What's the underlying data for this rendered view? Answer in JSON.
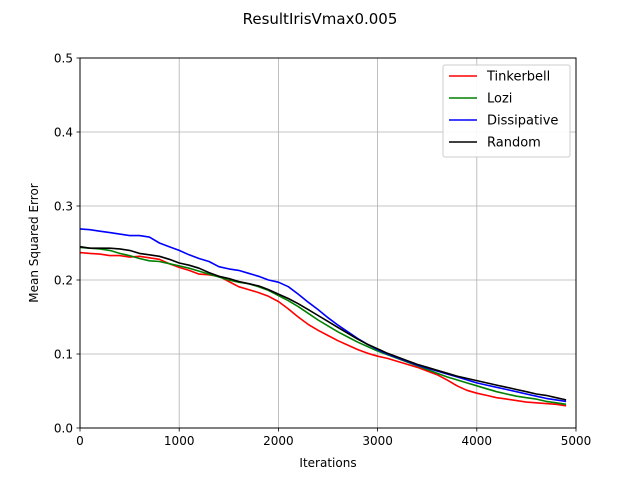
{
  "chart_data": {
    "type": "line",
    "title": "ResultIrisVmax0.005",
    "xlabel": "Iterations",
    "ylabel": "Mean Squared Error",
    "xlim": [
      0,
      5000
    ],
    "ylim": [
      0,
      0.5
    ],
    "xticks": [
      0,
      1000,
      2000,
      3000,
      4000,
      5000
    ],
    "xtick_labels": [
      "0",
      "1000",
      "2000",
      "3000",
      "4000",
      "5000"
    ],
    "yticks": [
      0,
      0.1,
      0.2,
      0.3,
      0.4,
      0.5
    ],
    "ytick_labels": [
      "0.0",
      "0.1",
      "0.2",
      "0.3",
      "0.4",
      "0.5"
    ],
    "grid": true,
    "legend_position": "top-right",
    "series": [
      {
        "name": "Tinkerbell",
        "color": "#ff0000",
        "x": [
          0,
          100,
          200,
          300,
          400,
          500,
          600,
          700,
          800,
          900,
          1000,
          1100,
          1200,
          1300,
          1400,
          1500,
          1600,
          1700,
          1800,
          1900,
          2000,
          2100,
          2200,
          2300,
          2400,
          2500,
          2600,
          2700,
          2800,
          2900,
          3000,
          3100,
          3200,
          3300,
          3400,
          3500,
          3600,
          3700,
          3800,
          3900,
          4000,
          4100,
          4200,
          4300,
          4400,
          4500,
          4600,
          4700,
          4800,
          4900
        ],
        "y": [
          0.237,
          0.236,
          0.235,
          0.233,
          0.233,
          0.231,
          0.232,
          0.23,
          0.228,
          0.222,
          0.217,
          0.213,
          0.208,
          0.207,
          0.205,
          0.198,
          0.191,
          0.187,
          0.183,
          0.178,
          0.171,
          0.161,
          0.15,
          0.14,
          0.132,
          0.125,
          0.118,
          0.112,
          0.106,
          0.101,
          0.097,
          0.094,
          0.09,
          0.086,
          0.082,
          0.077,
          0.072,
          0.065,
          0.057,
          0.051,
          0.047,
          0.044,
          0.041,
          0.039,
          0.037,
          0.035,
          0.034,
          0.033,
          0.032,
          0.03
        ]
      },
      {
        "name": "Lozi",
        "color": "#008000",
        "x": [
          0,
          100,
          200,
          300,
          400,
          500,
          600,
          700,
          800,
          900,
          1000,
          1100,
          1200,
          1300,
          1400,
          1500,
          1600,
          1700,
          1800,
          1900,
          2000,
          2100,
          2200,
          2300,
          2400,
          2500,
          2600,
          2700,
          2800,
          2900,
          3000,
          3100,
          3200,
          3300,
          3400,
          3500,
          3600,
          3700,
          3800,
          3900,
          4000,
          4100,
          4200,
          4300,
          4400,
          4500,
          4600,
          4700,
          4800,
          4900
        ],
        "y": [
          0.244,
          0.243,
          0.242,
          0.24,
          0.236,
          0.233,
          0.229,
          0.226,
          0.225,
          0.222,
          0.219,
          0.216,
          0.212,
          0.208,
          0.204,
          0.2,
          0.197,
          0.195,
          0.191,
          0.186,
          0.179,
          0.172,
          0.164,
          0.155,
          0.146,
          0.138,
          0.13,
          0.123,
          0.116,
          0.11,
          0.104,
          0.099,
          0.094,
          0.089,
          0.084,
          0.079,
          0.074,
          0.069,
          0.065,
          0.061,
          0.057,
          0.053,
          0.049,
          0.046,
          0.043,
          0.041,
          0.039,
          0.036,
          0.034,
          0.032
        ]
      },
      {
        "name": "Dissipative",
        "color": "#0000ff",
        "x": [
          0,
          100,
          200,
          300,
          400,
          500,
          600,
          700,
          800,
          900,
          1000,
          1100,
          1200,
          1300,
          1400,
          1500,
          1600,
          1700,
          1800,
          1900,
          2000,
          2100,
          2200,
          2300,
          2400,
          2500,
          2600,
          2700,
          2800,
          2900,
          3000,
          3100,
          3200,
          3300,
          3400,
          3500,
          3600,
          3700,
          3800,
          3900,
          4000,
          4100,
          4200,
          4300,
          4400,
          4500,
          4600,
          4700,
          4800,
          4900
        ],
        "y": [
          0.269,
          0.268,
          0.266,
          0.264,
          0.262,
          0.26,
          0.26,
          0.258,
          0.25,
          0.245,
          0.24,
          0.234,
          0.229,
          0.225,
          0.218,
          0.215,
          0.213,
          0.209,
          0.205,
          0.2,
          0.197,
          0.191,
          0.181,
          0.17,
          0.16,
          0.149,
          0.139,
          0.13,
          0.121,
          0.113,
          0.106,
          0.1,
          0.095,
          0.09,
          0.085,
          0.081,
          0.077,
          0.073,
          0.069,
          0.065,
          0.061,
          0.058,
          0.055,
          0.052,
          0.049,
          0.046,
          0.043,
          0.04,
          0.038,
          0.036
        ]
      },
      {
        "name": "Random",
        "color": "#000000",
        "x": [
          0,
          100,
          200,
          300,
          400,
          500,
          600,
          700,
          800,
          900,
          1000,
          1100,
          1200,
          1300,
          1400,
          1500,
          1600,
          1700,
          1800,
          1900,
          2000,
          2100,
          2200,
          2300,
          2400,
          2500,
          2600,
          2700,
          2800,
          2900,
          3000,
          3100,
          3200,
          3300,
          3400,
          3500,
          3600,
          3700,
          3800,
          3900,
          4000,
          4100,
          4200,
          4300,
          4400,
          4500,
          4600,
          4700,
          4800,
          4900
        ],
        "y": [
          0.245,
          0.243,
          0.243,
          0.243,
          0.242,
          0.24,
          0.236,
          0.234,
          0.232,
          0.228,
          0.223,
          0.22,
          0.216,
          0.21,
          0.205,
          0.202,
          0.198,
          0.195,
          0.192,
          0.187,
          0.181,
          0.175,
          0.168,
          0.16,
          0.152,
          0.144,
          0.136,
          0.128,
          0.12,
          0.113,
          0.107,
          0.101,
          0.096,
          0.091,
          0.086,
          0.082,
          0.078,
          0.074,
          0.07,
          0.067,
          0.064,
          0.061,
          0.058,
          0.055,
          0.052,
          0.049,
          0.046,
          0.044,
          0.041,
          0.038
        ]
      }
    ]
  }
}
